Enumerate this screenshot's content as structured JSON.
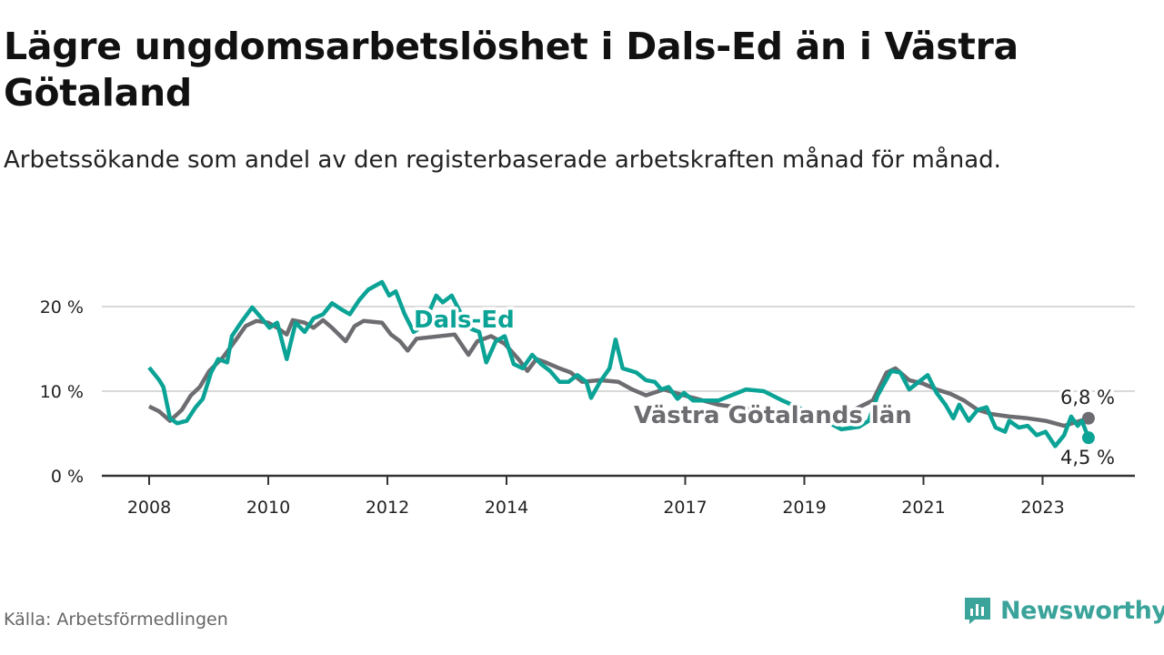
{
  "title": "Lägre ungdomsarbetslöshet i Dals-Ed än i Västra Götaland",
  "subtitle": "Arbetssökande som andel av den registerbaserade arbetskraften månad för månad.",
  "source": "Källa: Arbetsförmedlingen",
  "logo": "Newsworthy",
  "chart_data": {
    "type": "line",
    "title": "Lägre ungdomsarbetslöshet i Dals-Ed än i Västra Götaland",
    "xlabel": "",
    "ylabel": "",
    "xlim": [
      2008,
      2024
    ],
    "ylim": [
      0,
      20
    ],
    "grid": true,
    "x_ticks": [
      2008,
      2010,
      2012,
      2014,
      2017,
      2019,
      2021,
      2023
    ],
    "x_tick_labels": [
      "2008",
      "2010",
      "2012",
      "2014",
      "2017",
      "2019",
      "2021",
      "2023"
    ],
    "y_ticks": [
      0,
      10,
      20
    ],
    "y_tick_labels": [
      "0 %",
      "10 %",
      "20 %"
    ],
    "series": [
      {
        "name": "Västra Götalands län",
        "color": "#6d6c71",
        "end_label": "6,8 %",
        "points": [
          [
            2008.0,
            8.2
          ],
          [
            2008.17,
            7.6
          ],
          [
            2008.35,
            6.5
          ],
          [
            2008.55,
            7.8
          ],
          [
            2008.7,
            9.5
          ],
          [
            2008.85,
            10.5
          ],
          [
            2009.01,
            12.4
          ],
          [
            2009.24,
            14.0
          ],
          [
            2009.44,
            15.9
          ],
          [
            2009.62,
            17.7
          ],
          [
            2009.8,
            18.3
          ],
          [
            2010.0,
            18.1
          ],
          [
            2010.15,
            17.5
          ],
          [
            2010.31,
            16.7
          ],
          [
            2010.41,
            18.4
          ],
          [
            2010.61,
            18.1
          ],
          [
            2010.76,
            17.5
          ],
          [
            2010.92,
            18.4
          ],
          [
            2011.07,
            17.5
          ],
          [
            2011.3,
            15.9
          ],
          [
            2011.45,
            17.7
          ],
          [
            2011.6,
            18.3
          ],
          [
            2011.91,
            18.1
          ],
          [
            2012.06,
            16.7
          ],
          [
            2012.21,
            15.9
          ],
          [
            2012.34,
            14.8
          ],
          [
            2012.49,
            16.2
          ],
          [
            2013.13,
            16.7
          ],
          [
            2013.36,
            14.3
          ],
          [
            2013.51,
            15.9
          ],
          [
            2013.74,
            16.5
          ],
          [
            2013.97,
            15.6
          ],
          [
            2014.2,
            13.8
          ],
          [
            2014.35,
            12.4
          ],
          [
            2014.5,
            13.8
          ],
          [
            2014.66,
            13.4
          ],
          [
            2014.89,
            12.7
          ],
          [
            2015.08,
            12.2
          ],
          [
            2015.27,
            11.1
          ],
          [
            2015.57,
            11.3
          ],
          [
            2015.88,
            11.1
          ],
          [
            2016.11,
            10.2
          ],
          [
            2016.34,
            9.5
          ],
          [
            2016.64,
            10.2
          ],
          [
            2016.98,
            9.5
          ],
          [
            2017.56,
            8.4
          ],
          [
            2018.17,
            7.8
          ],
          [
            2018.78,
            7.3
          ],
          [
            2019.54,
            6.8
          ],
          [
            2020.15,
            8.9
          ],
          [
            2020.38,
            12.2
          ],
          [
            2020.53,
            12.7
          ],
          [
            2020.76,
            11.3
          ],
          [
            2020.99,
            10.9
          ],
          [
            2021.22,
            10.2
          ],
          [
            2021.45,
            9.7
          ],
          [
            2021.68,
            8.9
          ],
          [
            2021.91,
            7.8
          ],
          [
            2022.14,
            7.3
          ],
          [
            2022.44,
            7.0
          ],
          [
            2022.75,
            6.8
          ],
          [
            2023.05,
            6.5
          ],
          [
            2023.36,
            5.9
          ],
          [
            2023.77,
            6.8
          ]
        ]
      },
      {
        "name": "Dals-Ed",
        "color": "#0aa396",
        "end_label": "4,5 %",
        "points": [
          [
            2008.0,
            12.8
          ],
          [
            2008.17,
            11.3
          ],
          [
            2008.24,
            10.5
          ],
          [
            2008.35,
            6.8
          ],
          [
            2008.47,
            6.2
          ],
          [
            2008.63,
            6.5
          ],
          [
            2008.78,
            8.1
          ],
          [
            2008.9,
            9.1
          ],
          [
            2009.04,
            12.2
          ],
          [
            2009.16,
            13.8
          ],
          [
            2009.31,
            13.4
          ],
          [
            2009.39,
            16.5
          ],
          [
            2009.54,
            18.1
          ],
          [
            2009.73,
            19.9
          ],
          [
            2009.89,
            18.6
          ],
          [
            2010.02,
            17.5
          ],
          [
            2010.15,
            18.1
          ],
          [
            2010.31,
            13.8
          ],
          [
            2010.46,
            18.1
          ],
          [
            2010.61,
            17.0
          ],
          [
            2010.76,
            18.6
          ],
          [
            2010.92,
            19.1
          ],
          [
            2011.07,
            20.4
          ],
          [
            2011.22,
            19.7
          ],
          [
            2011.37,
            19.1
          ],
          [
            2011.53,
            20.8
          ],
          [
            2011.68,
            22.0
          ],
          [
            2011.91,
            22.9
          ],
          [
            2012.03,
            21.3
          ],
          [
            2012.14,
            21.8
          ],
          [
            2012.29,
            19.1
          ],
          [
            2012.44,
            17.0
          ],
          [
            2012.6,
            17.7
          ],
          [
            2012.82,
            21.3
          ],
          [
            2012.93,
            20.5
          ],
          [
            2013.08,
            21.3
          ],
          [
            2013.21,
            19.5
          ],
          [
            2013.36,
            17.5
          ],
          [
            2013.54,
            17.0
          ],
          [
            2013.66,
            13.4
          ],
          [
            2013.82,
            15.9
          ],
          [
            2013.97,
            16.5
          ],
          [
            2014.12,
            13.2
          ],
          [
            2014.27,
            12.7
          ],
          [
            2014.43,
            14.3
          ],
          [
            2014.58,
            13.2
          ],
          [
            2014.73,
            12.4
          ],
          [
            2014.89,
            11.1
          ],
          [
            2015.04,
            11.1
          ],
          [
            2015.19,
            11.9
          ],
          [
            2015.34,
            11.1
          ],
          [
            2015.42,
            9.2
          ],
          [
            2015.57,
            11.1
          ],
          [
            2015.73,
            12.7
          ],
          [
            2015.83,
            16.1
          ],
          [
            2015.95,
            12.7
          ],
          [
            2016.18,
            12.2
          ],
          [
            2016.34,
            11.3
          ],
          [
            2016.49,
            11.1
          ],
          [
            2016.6,
            10.2
          ],
          [
            2016.72,
            10.5
          ],
          [
            2016.87,
            9.1
          ],
          [
            2016.98,
            9.8
          ],
          [
            2017.13,
            8.9
          ],
          [
            2017.56,
            8.9
          ],
          [
            2018.02,
            10.2
          ],
          [
            2018.32,
            10.0
          ],
          [
            2018.63,
            8.9
          ],
          [
            2019.08,
            7.5
          ],
          [
            2019.62,
            5.5
          ],
          [
            2019.92,
            5.8
          ],
          [
            2020.08,
            6.5
          ],
          [
            2020.23,
            9.5
          ],
          [
            2020.46,
            12.4
          ],
          [
            2020.61,
            12.2
          ],
          [
            2020.76,
            10.2
          ],
          [
            2020.92,
            11.1
          ],
          [
            2021.07,
            11.9
          ],
          [
            2021.22,
            9.8
          ],
          [
            2021.37,
            8.4
          ],
          [
            2021.5,
            6.8
          ],
          [
            2021.6,
            8.4
          ],
          [
            2021.76,
            6.5
          ],
          [
            2021.91,
            7.8
          ],
          [
            2022.06,
            8.1
          ],
          [
            2022.21,
            5.7
          ],
          [
            2022.37,
            5.2
          ],
          [
            2022.44,
            6.5
          ],
          [
            2022.6,
            5.7
          ],
          [
            2022.75,
            5.9
          ],
          [
            2022.9,
            4.8
          ],
          [
            2023.05,
            5.2
          ],
          [
            2023.21,
            3.5
          ],
          [
            2023.36,
            4.8
          ],
          [
            2023.48,
            7.0
          ],
          [
            2023.59,
            5.9
          ],
          [
            2023.66,
            6.5
          ],
          [
            2023.77,
            4.5
          ]
        ]
      }
    ]
  }
}
